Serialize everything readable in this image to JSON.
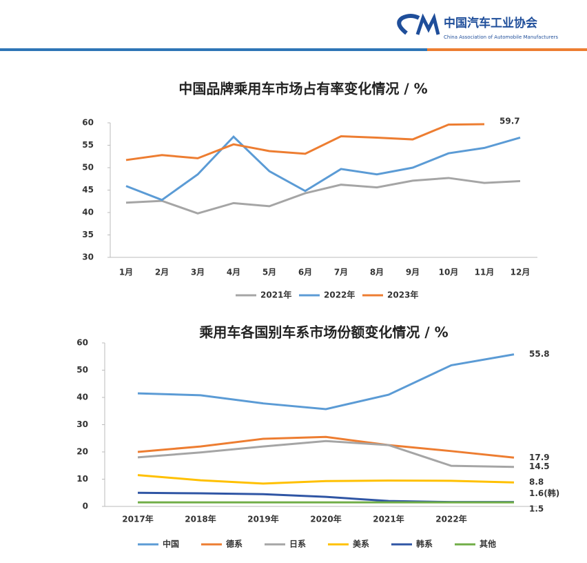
{
  "header": {
    "org_name": "中国汽车工业协会",
    "org_name_en": "China Association of Automobile Manufacturers"
  },
  "chart_data": [
    {
      "type": "line",
      "title": "中国品牌乘用车市场占有率变化情况 / %",
      "categories": [
        "1月",
        "2月",
        "3月",
        "4月",
        "5月",
        "6月",
        "7月",
        "8月",
        "9月",
        "10月",
        "11月",
        "12月"
      ],
      "ylim": [
        30,
        60
      ],
      "yticks": [
        30,
        35,
        40,
        45,
        50,
        55,
        60
      ],
      "series": [
        {
          "name": "2021年",
          "color": "#a5a5a5",
          "values": [
            42.2,
            42.6,
            39.8,
            42.1,
            41.4,
            44.3,
            46.2,
            45.6,
            47.1,
            47.7,
            46.6,
            47.0
          ]
        },
        {
          "name": "2022年",
          "color": "#5b9bd5",
          "values": [
            45.9,
            42.8,
            48.5,
            56.9,
            49.2,
            44.8,
            49.7,
            48.5,
            50.0,
            53.2,
            54.4,
            56.7
          ]
        },
        {
          "name": "2023年",
          "color": "#ed7d31",
          "end_label": true,
          "values": [
            51.7,
            52.8,
            52.1,
            55.2,
            53.7,
            53.1,
            57.0,
            56.7,
            56.3,
            59.6,
            59.7,
            null
          ]
        }
      ]
    },
    {
      "type": "line",
      "title": "乘用车各国别车系市场份额变化情况 / %",
      "categories": [
        "2017年",
        "2018年",
        "2019年",
        "2020年",
        "2021年",
        "2022年",
        null
      ],
      "ylim": [
        0,
        60
      ],
      "yticks": [
        0,
        10,
        20,
        30,
        40,
        50,
        60
      ],
      "series": [
        {
          "name": "中国",
          "color": "#5b9bd5",
          "end_label": true,
          "values": [
            41.5,
            40.8,
            37.8,
            35.7,
            41.0,
            51.8,
            55.8
          ]
        },
        {
          "name": "德系",
          "color": "#ed7d31",
          "end_label": true,
          "values": [
            20.0,
            22.0,
            24.8,
            25.5,
            22.5,
            20.3,
            17.9
          ]
        },
        {
          "name": "日系",
          "color": "#a5a5a5",
          "end_label": true,
          "values": [
            18.0,
            19.8,
            22.0,
            24.0,
            22.5,
            14.9,
            14.5
          ]
        },
        {
          "name": "美系",
          "color": "#ffc000",
          "end_label": true,
          "values": [
            11.5,
            9.6,
            8.4,
            9.3,
            9.5,
            9.4,
            8.8
          ]
        },
        {
          "name": "韩系",
          "color": "#2f55a4",
          "end_label": true,
          "values": [
            5.0,
            4.8,
            4.5,
            3.5,
            2.0,
            1.6,
            1.6
          ],
          "value_labels": [
            null,
            null,
            null,
            null,
            null,
            null,
            "1.6(韩)"
          ]
        },
        {
          "name": "其他",
          "color": "#70ad47",
          "end_label": true,
          "values": [
            1.5,
            1.5,
            1.5,
            1.5,
            1.5,
            1.5,
            1.5
          ]
        }
      ]
    }
  ]
}
